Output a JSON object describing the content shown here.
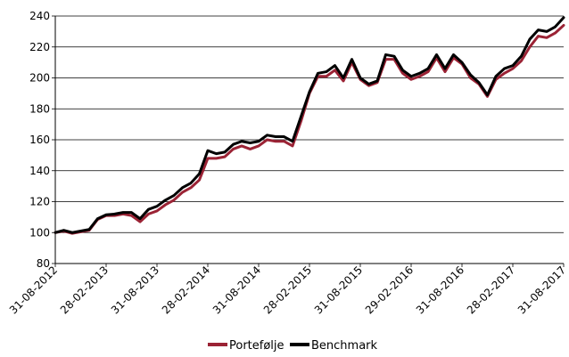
{
  "chart_data": {
    "type": "line",
    "title": "",
    "xlabel": "",
    "ylabel": "",
    "ylim": [
      80,
      240
    ],
    "yticks": [
      80,
      100,
      120,
      140,
      160,
      180,
      200,
      220,
      240
    ],
    "grid": "horizontal",
    "legend_placement": "bottom",
    "x_tick_labels": [
      "31-08-2012",
      "28-02-2013",
      "31-08-2013",
      "28-02-2014",
      "31-08-2014",
      "28-02-2015",
      "31-08-2015",
      "29-02-2016",
      "31-08-2016",
      "28-02-2017",
      "31-08-2017"
    ],
    "series": [
      {
        "name": "Portefølje",
        "color": "#9b2335",
        "values": [
          100,
          101,
          99.5,
          100.5,
          101.5,
          108.5,
          111,
          111,
          112,
          111,
          107,
          112,
          114,
          118,
          121,
          126,
          129,
          134,
          148,
          148,
          149,
          154,
          156,
          154,
          156,
          160,
          159,
          159,
          156,
          172,
          190,
          201,
          201,
          205,
          198,
          210,
          199,
          195,
          197,
          212,
          212,
          203,
          199,
          201,
          204,
          213,
          204,
          213,
          209,
          200,
          196,
          188,
          199,
          203,
          206,
          211,
          220,
          227,
          226,
          229,
          234
        ]
      },
      {
        "name": "Benchmark",
        "color": "#000000",
        "values": [
          100,
          101.5,
          100,
          101,
          102,
          109,
          111.5,
          112,
          113,
          113,
          109,
          115,
          117,
          121,
          124,
          129,
          132,
          138,
          153,
          151,
          152,
          157,
          159,
          158,
          159,
          163,
          162,
          162,
          159,
          175,
          191,
          203,
          204,
          208,
          200,
          212,
          200,
          196,
          198,
          215,
          214,
          205,
          201,
          203,
          206,
          215,
          206,
          215,
          210,
          202,
          197,
          189,
          201,
          206,
          208,
          214,
          225,
          231,
          230,
          233,
          239
        ]
      }
    ]
  }
}
